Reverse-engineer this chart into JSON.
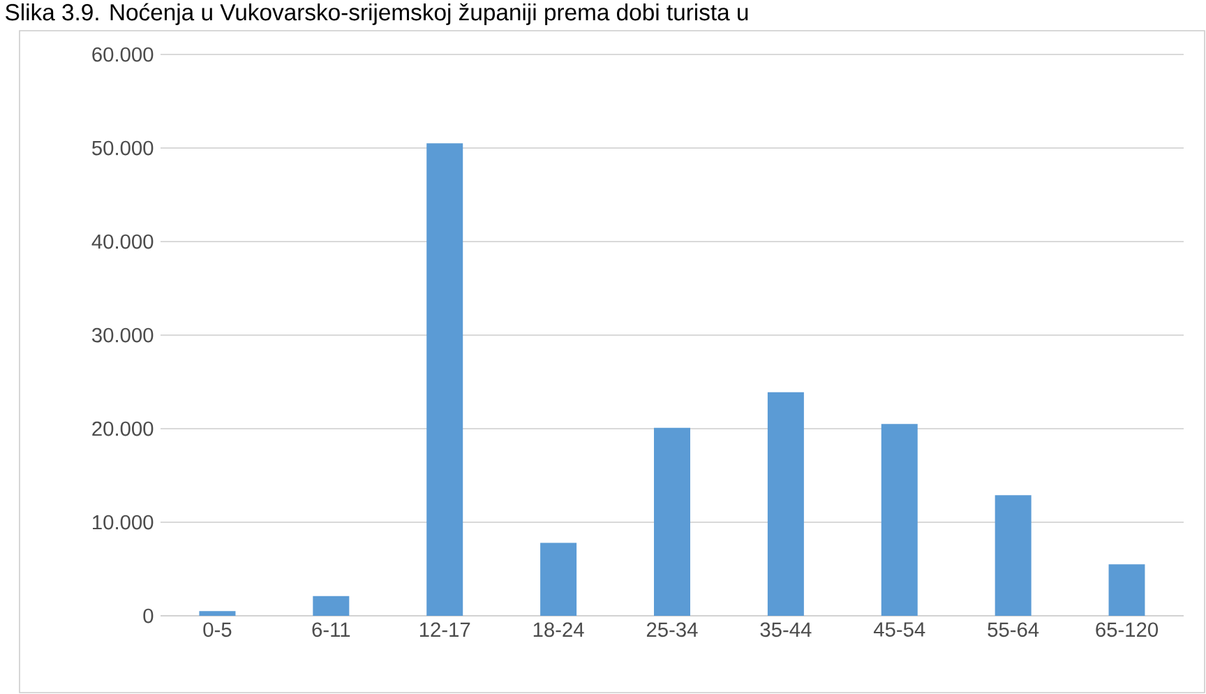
{
  "chart_data": {
    "type": "bar",
    "title": "Slika 3.9. Noćenja u Vukovarsko-srijemskoj županiji prema dobi turista u",
    "categories": [
      "0-5",
      "6-11",
      "12-17",
      "18-24",
      "25-34",
      "35-44",
      "45-54",
      "55-64",
      "65-120"
    ],
    "values": [
      500,
      2100,
      50500,
      7800,
      20100,
      23900,
      20500,
      12900,
      5500
    ],
    "color": "#5b9bd5",
    "ylim": [
      0,
      60000
    ],
    "yticks": [
      {
        "value": 0,
        "label": "0"
      },
      {
        "value": 10000,
        "label": "10.000"
      },
      {
        "value": 20000,
        "label": "20.000"
      },
      {
        "value": 30000,
        "label": "30.000"
      },
      {
        "value": 40000,
        "label": "40.000"
      },
      {
        "value": 50000,
        "label": "50.000"
      },
      {
        "value": 60000,
        "label": "60.000"
      }
    ],
    "grid": "y"
  }
}
